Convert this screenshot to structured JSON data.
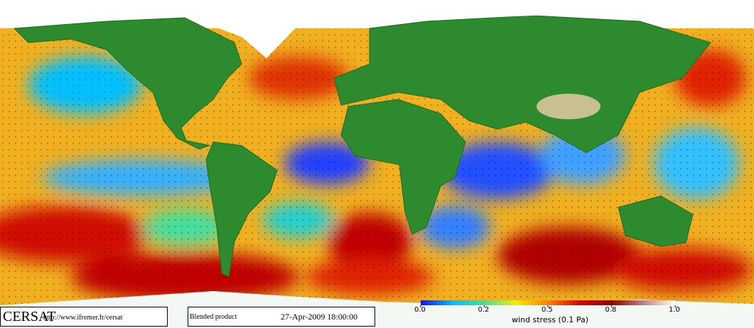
{
  "footer": {
    "logo": "CERSAT",
    "url": "http://www.ifremer.fr/cersat",
    "product": "Blended product",
    "timestamp": "27-Apr-2009 18:00:00"
  },
  "colorbar": {
    "label": "wind stress (0.1 Pa)",
    "ticks": [
      {
        "value": 0,
        "label": "0.0"
      },
      0.2,
      0.5,
      0.8,
      {
        "value": 1,
        "label": "1.0"
      }
    ],
    "colors": [
      "#1010ff",
      "#00c0ff",
      "#40e0a0",
      "#f0f000",
      "#ff8000",
      "#e00000",
      "#900000",
      "#c08080",
      "#ffffff"
    ]
  }
}
